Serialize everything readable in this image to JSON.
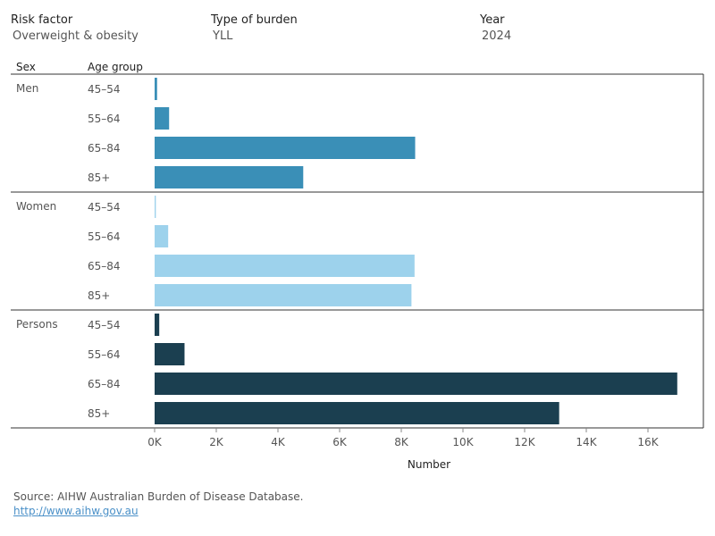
{
  "filters": {
    "risk_factor": {
      "label": "Risk factor",
      "value": "Overweight & obesity"
    },
    "type_of_burden": {
      "label": "Type of burden",
      "value": "YLL"
    },
    "year": {
      "label": "Year",
      "value": "2024"
    }
  },
  "headers": {
    "sex": "Sex",
    "age_group": "Age group"
  },
  "source": {
    "text": "Source: AIHW Australian Burden of Disease Database.",
    "link": "http://www.aihw.gov.au"
  },
  "colors": {
    "Men": "#3a8fb7",
    "Women": "#9dd2ec",
    "Persons": "#1b3f50"
  },
  "chart_data": {
    "type": "bar",
    "orientation": "horizontal",
    "xlabel": "Number",
    "xlim": [
      0,
      17000
    ],
    "ticks": [
      0,
      2000,
      4000,
      6000,
      8000,
      10000,
      12000,
      14000,
      16000
    ],
    "tick_labels": [
      "0K",
      "2K",
      "4K",
      "6K",
      "8K",
      "10K",
      "12K",
      "14K",
      "16K"
    ],
    "categories": [
      "45–54",
      "55–64",
      "65–84",
      "85+"
    ],
    "series": [
      {
        "name": "Men",
        "values": [
          80,
          470,
          8450,
          4820
        ]
      },
      {
        "name": "Women",
        "values": [
          40,
          440,
          8430,
          8330
        ]
      },
      {
        "name": "Persons",
        "values": [
          150,
          970,
          16950,
          13120
        ]
      }
    ]
  }
}
